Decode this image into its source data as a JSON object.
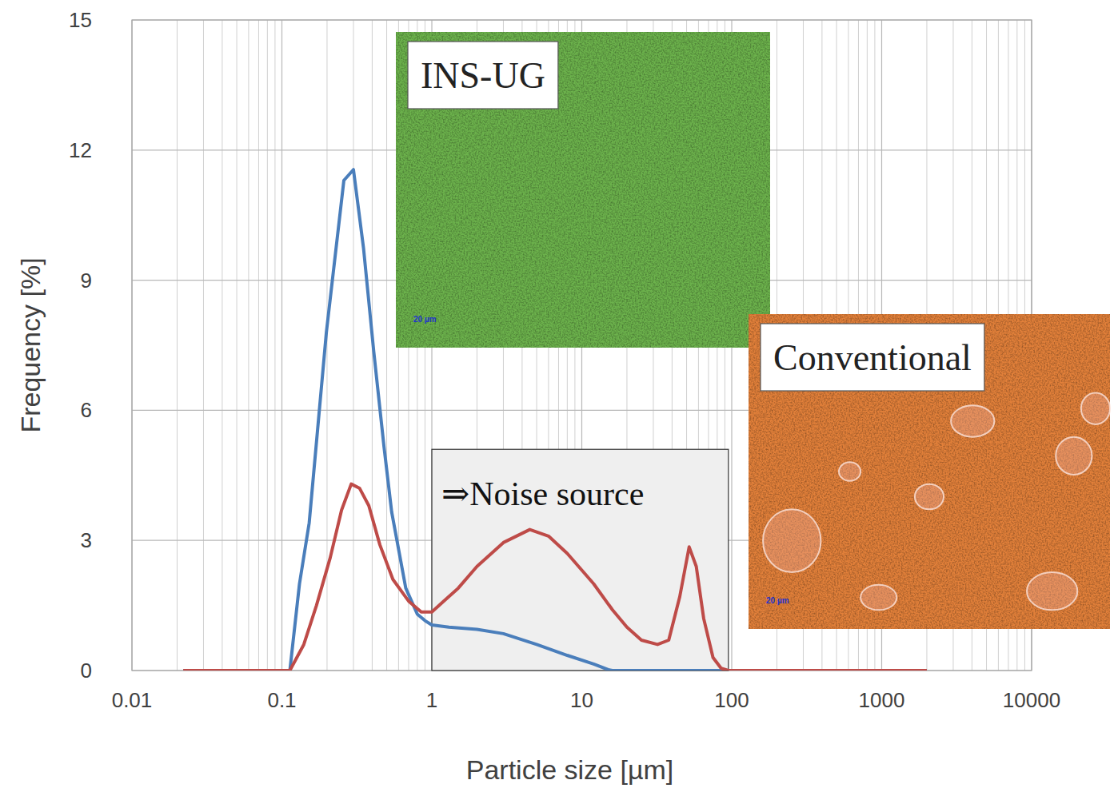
{
  "chart_data": {
    "type": "line",
    "x_label": "Particle size [µm]",
    "y_label": "Frequency [%]",
    "log": "x",
    "grid": true,
    "xlim": [
      0.01,
      10000
    ],
    "xticks": [
      0.01,
      0.1,
      1,
      10,
      100,
      1000,
      10000
    ],
    "ylim": [
      0,
      15
    ],
    "yticks": [
      0,
      3,
      6,
      9,
      12,
      15
    ],
    "series": [
      {
        "color": "#4a7ebb",
        "x": [
          0.022,
          0.113,
          0.131,
          0.152,
          0.198,
          0.259,
          0.3,
          0.35,
          0.41,
          0.48,
          0.54,
          0.67,
          0.8,
          0.9,
          1.0,
          1.3,
          2,
          3,
          5,
          8,
          12,
          15,
          16,
          2000
        ],
        "values": [
          0,
          0,
          2.0,
          3.4,
          7.8,
          11.3,
          11.55,
          9.75,
          7.35,
          5.15,
          3.65,
          1.9,
          1.3,
          1.15,
          1.05,
          1.0,
          0.95,
          0.85,
          0.6,
          0.35,
          0.15,
          0.02,
          0,
          0
        ]
      },
      {
        "color": "#be4b48",
        "x": [
          0.022,
          0.113,
          0.14,
          0.17,
          0.21,
          0.25,
          0.29,
          0.33,
          0.38,
          0.45,
          0.55,
          0.7,
          0.85,
          1.0,
          1.2,
          1.5,
          2,
          3,
          4.5,
          6,
          8,
          12,
          16,
          20,
          25,
          32,
          38,
          45,
          52,
          58,
          65,
          75,
          85,
          95,
          2000
        ],
        "values": [
          0,
          0,
          0.6,
          1.5,
          2.6,
          3.7,
          4.3,
          4.2,
          3.8,
          2.9,
          2.1,
          1.6,
          1.35,
          1.35,
          1.6,
          1.9,
          2.4,
          2.95,
          3.25,
          3.1,
          2.7,
          2.0,
          1.4,
          1.0,
          0.7,
          0.6,
          0.7,
          1.7,
          2.85,
          2.4,
          1.2,
          0.3,
          0.05,
          0,
          0
        ]
      }
    ],
    "annotations": [
      {
        "text": "INS-UG",
        "scale_label": "20 µm",
        "color": "#6cb24c"
      },
      {
        "text": "Conventional",
        "scale_label": "20 µm",
        "color": "#e2803a"
      },
      {
        "text": "⇒Noise source",
        "x_range": [
          1,
          95
        ],
        "y_range": [
          0,
          5.1
        ]
      }
    ]
  }
}
